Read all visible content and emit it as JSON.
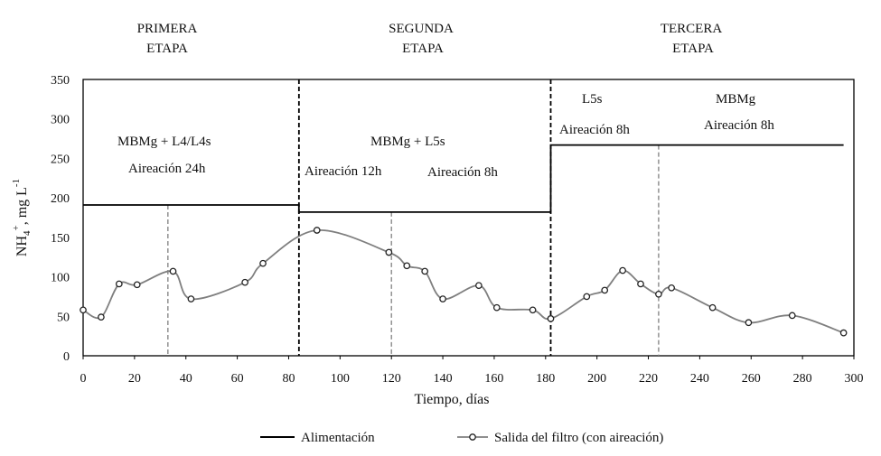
{
  "chart_data": {
    "type": "line",
    "xlabel": "Tiempo, días",
    "ylabel_main": "NH",
    "ylabel_sub": "4",
    "ylabel_sup": "+",
    "ylabel_rest": ", mg L",
    "ylabel_sup2": "-1",
    "xlim": [
      0,
      300
    ],
    "ylim": [
      0,
      350
    ],
    "x_ticks": [
      "0",
      "20",
      "40",
      "60",
      "80",
      "100",
      "120",
      "140",
      "160",
      "180",
      "200",
      "220",
      "240",
      "260",
      "280",
      "300"
    ],
    "y_ticks": [
      "0",
      "50",
      "100",
      "150",
      "200",
      "250",
      "300",
      "350"
    ],
    "grid": false,
    "legend_placement": "bottom",
    "series": [
      {
        "name": "Alimentación",
        "style": "step",
        "color": "#000000",
        "x": [
          0,
          84,
          84,
          182,
          182,
          296
        ],
        "y": [
          191,
          191,
          182,
          182,
          267,
          267
        ]
      },
      {
        "name": "Salida del filtro (con aireación)",
        "style": "smooth-markers",
        "color": "#7f7f7f",
        "x": [
          0,
          7,
          14,
          21,
          35,
          42,
          63,
          70,
          91,
          119,
          126,
          133,
          140,
          154,
          161,
          175,
          182,
          196,
          203,
          210,
          217,
          224,
          229,
          245,
          259,
          276,
          296
        ],
        "y": [
          58,
          49,
          91,
          90,
          107,
          72,
          93,
          117,
          159,
          131,
          114,
          107,
          72,
          89,
          61,
          58,
          47,
          75,
          83,
          108,
          91,
          78,
          86,
          61,
          42,
          51,
          29
        ]
      }
    ],
    "stage_boundaries": [
      84,
      182
    ],
    "subphase_lines": [
      33,
      120,
      224
    ],
    "stages": [
      {
        "line1": "PRIMERA",
        "line2": "ETAPA"
      },
      {
        "line1": "SEGUNDA",
        "line2": "ETAPA"
      },
      {
        "line1": "TERCERA",
        "line2": "ETAPA"
      }
    ],
    "annotations": [
      {
        "text": "MBMg  + L4/L4s"
      },
      {
        "text": "Aireación  24h"
      },
      {
        "text": "MBMg  + L5s"
      },
      {
        "text": "Aireación  12h"
      },
      {
        "text": "Aireación  8h"
      },
      {
        "text": "L5s"
      },
      {
        "text": "Aireación  8h"
      },
      {
        "text": "MBMg"
      },
      {
        "text": "Aireación  8h"
      }
    ]
  }
}
